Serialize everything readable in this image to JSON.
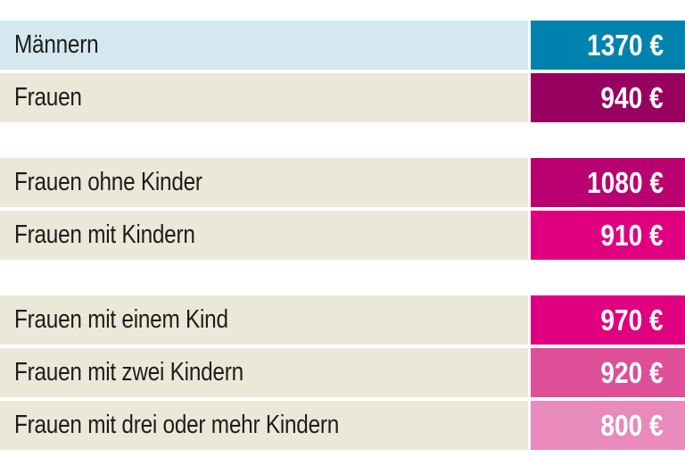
{
  "colors": {
    "background": "#ffffff",
    "row_bg_highlight": "#d5e8f0",
    "row_bg_default": "#ebe8da",
    "label_text": "#1d1d1b",
    "value_text": "#ffffff",
    "badge_teal": "#0082ae",
    "badge_dark_berry": "#98005f",
    "badge_magenta": "#ba0070",
    "badge_bright_pink": "#e0007f",
    "badge_medium_pink": "#df4f97",
    "badge_light_pink": "#e88abc"
  },
  "rows": [
    {
      "label": "Männern",
      "display": "1370 €",
      "value": 1370,
      "row_bg": "#d5e8f0",
      "badge_color": "#0082ae"
    },
    {
      "label": "Frauen",
      "display": "940 €",
      "value": 940,
      "row_bg": "#ebe8da",
      "badge_color": "#98005f"
    },
    {
      "label": "Frauen ohne Kinder",
      "display": "1080 €",
      "value": 1080,
      "row_bg": "#ebe8da",
      "badge_color": "#ba0070"
    },
    {
      "label": "Frauen mit Kindern",
      "display": "910 €",
      "value": 910,
      "row_bg": "#ebe8da",
      "badge_color": "#e0007f"
    },
    {
      "label": "Frauen mit einem Kind",
      "display": "970 €",
      "value": 970,
      "row_bg": "#ebe8da",
      "badge_color": "#e0007f"
    },
    {
      "label": "Frauen mit zwei Kindern",
      "display": "920 €",
      "value": 920,
      "row_bg": "#ebe8da",
      "badge_color": "#df4f97"
    },
    {
      "label": "Frauen mit drei oder mehr Kindern",
      "display": "800 €",
      "value": 800,
      "row_bg": "#ebe8da",
      "badge_color": "#e88abc"
    }
  ],
  "chart_data": {
    "type": "table",
    "title": "",
    "unit": "€",
    "categories": [
      "Männern",
      "Frauen",
      "Frauen ohne Kinder",
      "Frauen mit Kindern",
      "Frauen mit einem Kind",
      "Frauen mit zwei Kindern",
      "Frauen mit drei oder mehr Kindern"
    ],
    "values": [
      1370,
      940,
      1080,
      910,
      970,
      920,
      800
    ],
    "groups": [
      [
        "Männern",
        "Frauen"
      ],
      [
        "Frauen ohne Kinder",
        "Frauen mit Kindern"
      ],
      [
        "Frauen mit einem Kind",
        "Frauen mit zwei Kindern",
        "Frauen mit drei oder mehr Kindern"
      ]
    ],
    "legend_position": "none",
    "grid": false
  }
}
